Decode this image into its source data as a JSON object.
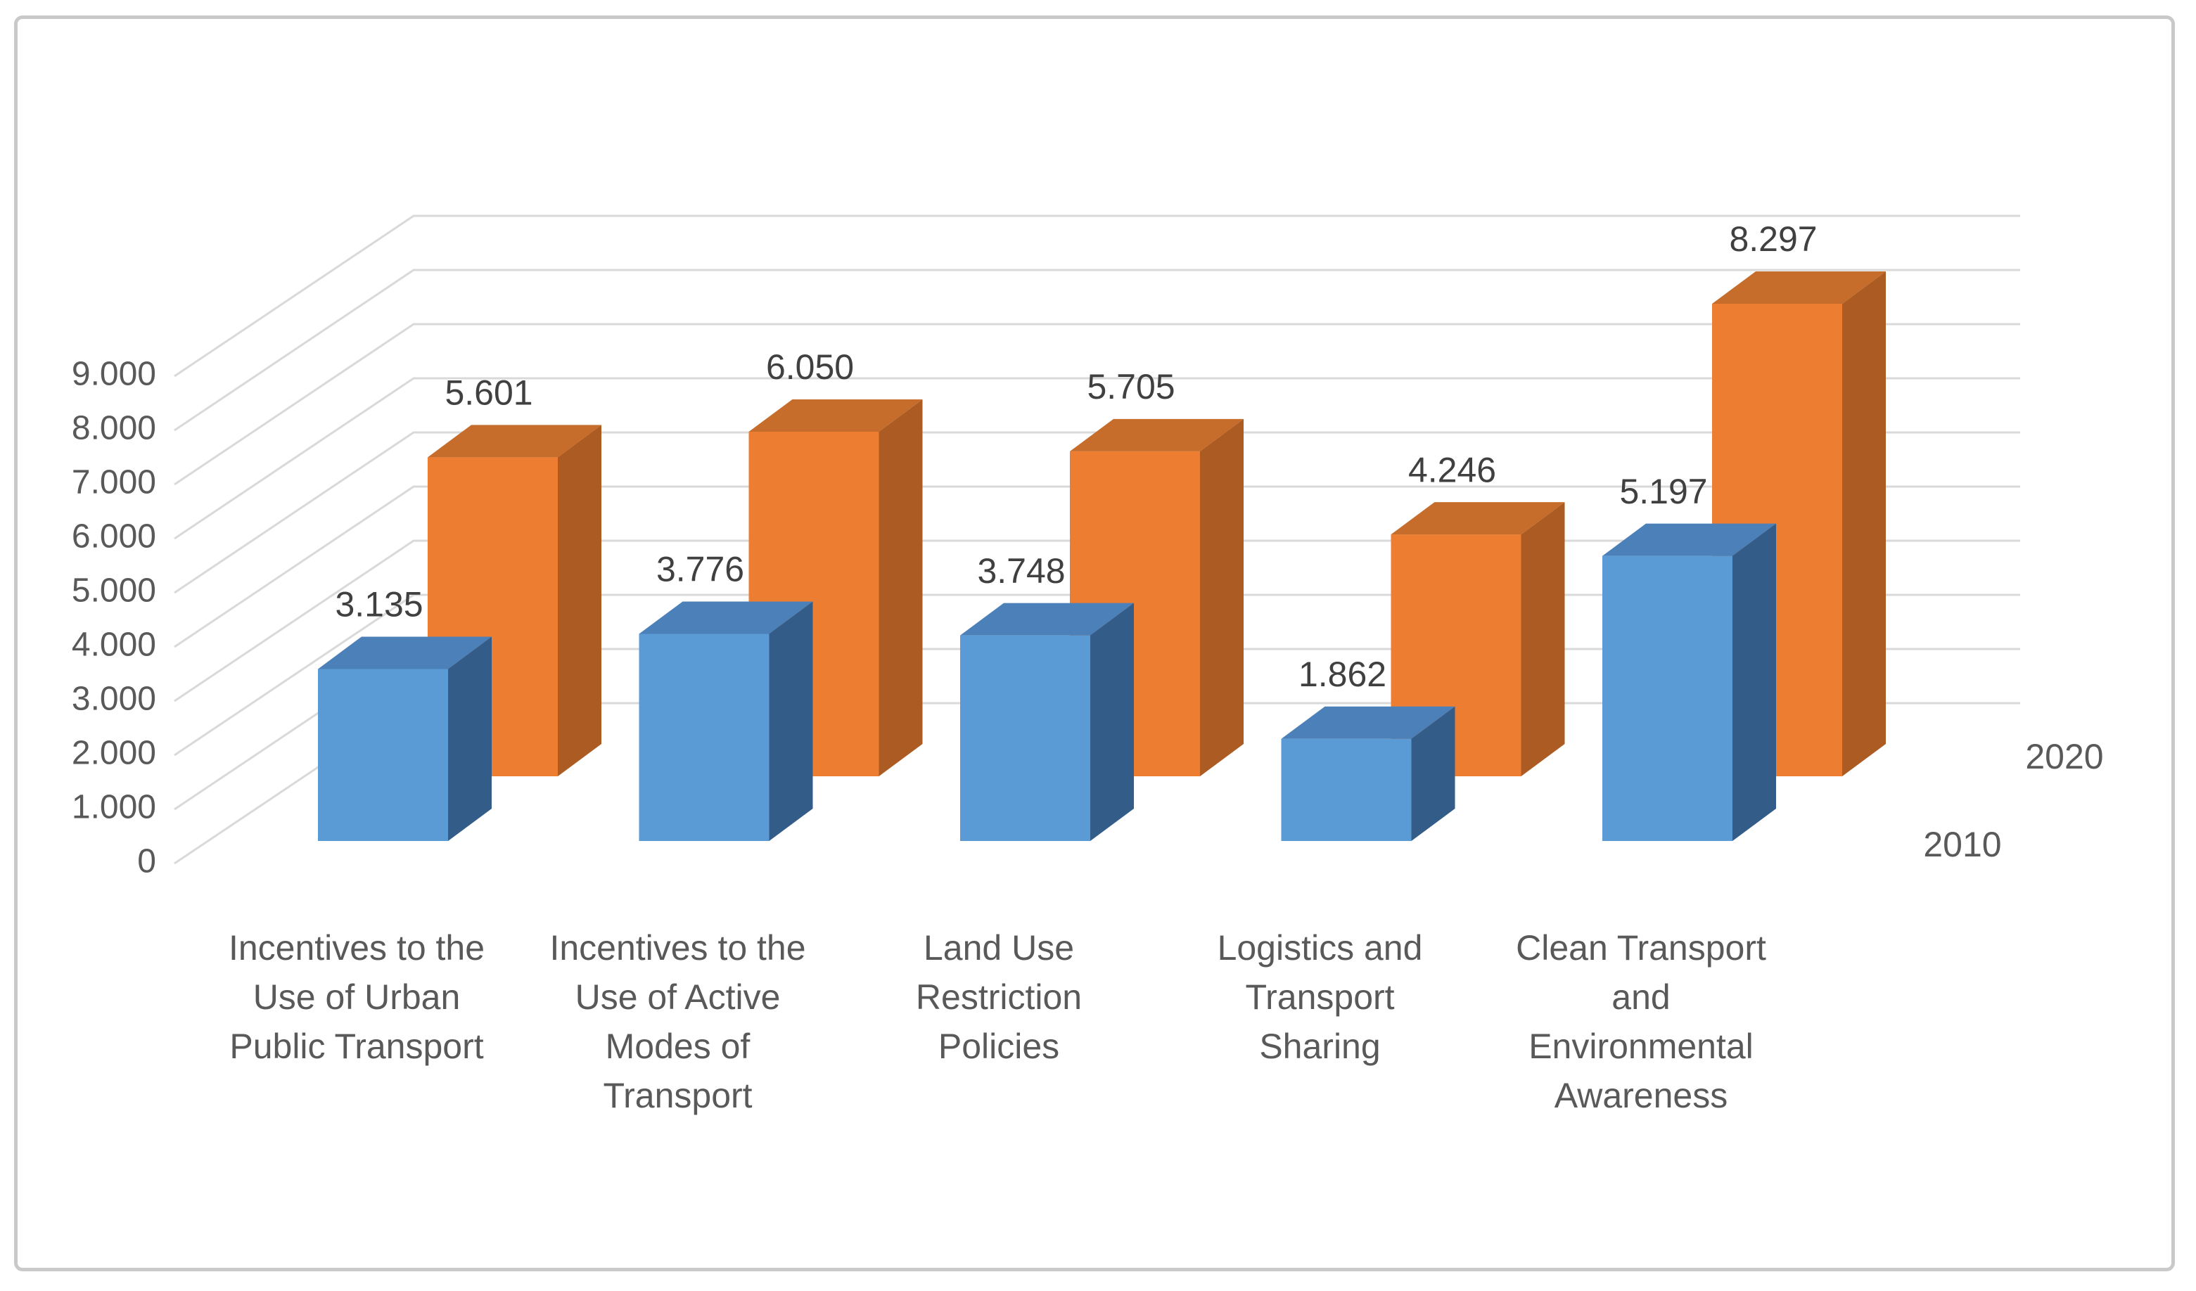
{
  "chart_data": {
    "type": "bar",
    "variant": "3d-clustered-column",
    "title": "",
    "categories": [
      "Incentives to the Use of Urban Public Transport",
      "Incentives to the Use of Active Modes of Transport",
      "Land Use Restriction Policies",
      "Logistics and Transport Sharing",
      "Clean Transport and Environmental Awareness"
    ],
    "category_label_lines": [
      [
        "Incentives to the",
        "Use of Urban",
        "Public Transport"
      ],
      [
        "Incentives to the",
        "Use of Active",
        "Modes of",
        "Transport"
      ],
      [
        "Land Use",
        "Restriction",
        "Policies"
      ],
      [
        "Logistics and",
        "Transport",
        "Sharing"
      ],
      [
        "Clean Transport",
        "and",
        "Environmental",
        "Awareness"
      ]
    ],
    "series": [
      {
        "name": "2010",
        "values": [
          3135,
          3776,
          3748,
          1862,
          5197
        ],
        "data_labels": [
          "3.135",
          "3.776",
          "3.748",
          "1.862",
          "5.197"
        ],
        "color_front": "#5B9BD5",
        "color_top": "#4B80B9",
        "color_side": "#335D88"
      },
      {
        "name": "2020",
        "values": [
          5601,
          6050,
          5705,
          4246,
          8297
        ],
        "data_labels": [
          "5.601",
          "6.050",
          "5.705",
          "4.246",
          "8.297"
        ],
        "color_front": "#ED7D31",
        "color_top": "#C66D2B",
        "color_side": "#AC5C23"
      }
    ],
    "value_axis": {
      "min": 0,
      "max": 9000,
      "step": 1000,
      "tick_labels": [
        "0",
        "1.000",
        "2.000",
        "3.000",
        "4.000",
        "5.000",
        "6.000",
        "7.000",
        "8.000",
        "9.000"
      ]
    },
    "depth_axis_labels": [
      "2010",
      "2020"
    ],
    "number_format_thousands_separator": ".",
    "legend_position": "none",
    "gridlines": true
  },
  "styles": {
    "gridline_color": "#D9D9D9",
    "axis_text_color": "#595959",
    "category_text_color": "#595959",
    "data_label_color": "#404040",
    "depth_label_color": "#595959",
    "frame_border_color": "#C9C9C9",
    "background_color": "#FFFFFF"
  }
}
